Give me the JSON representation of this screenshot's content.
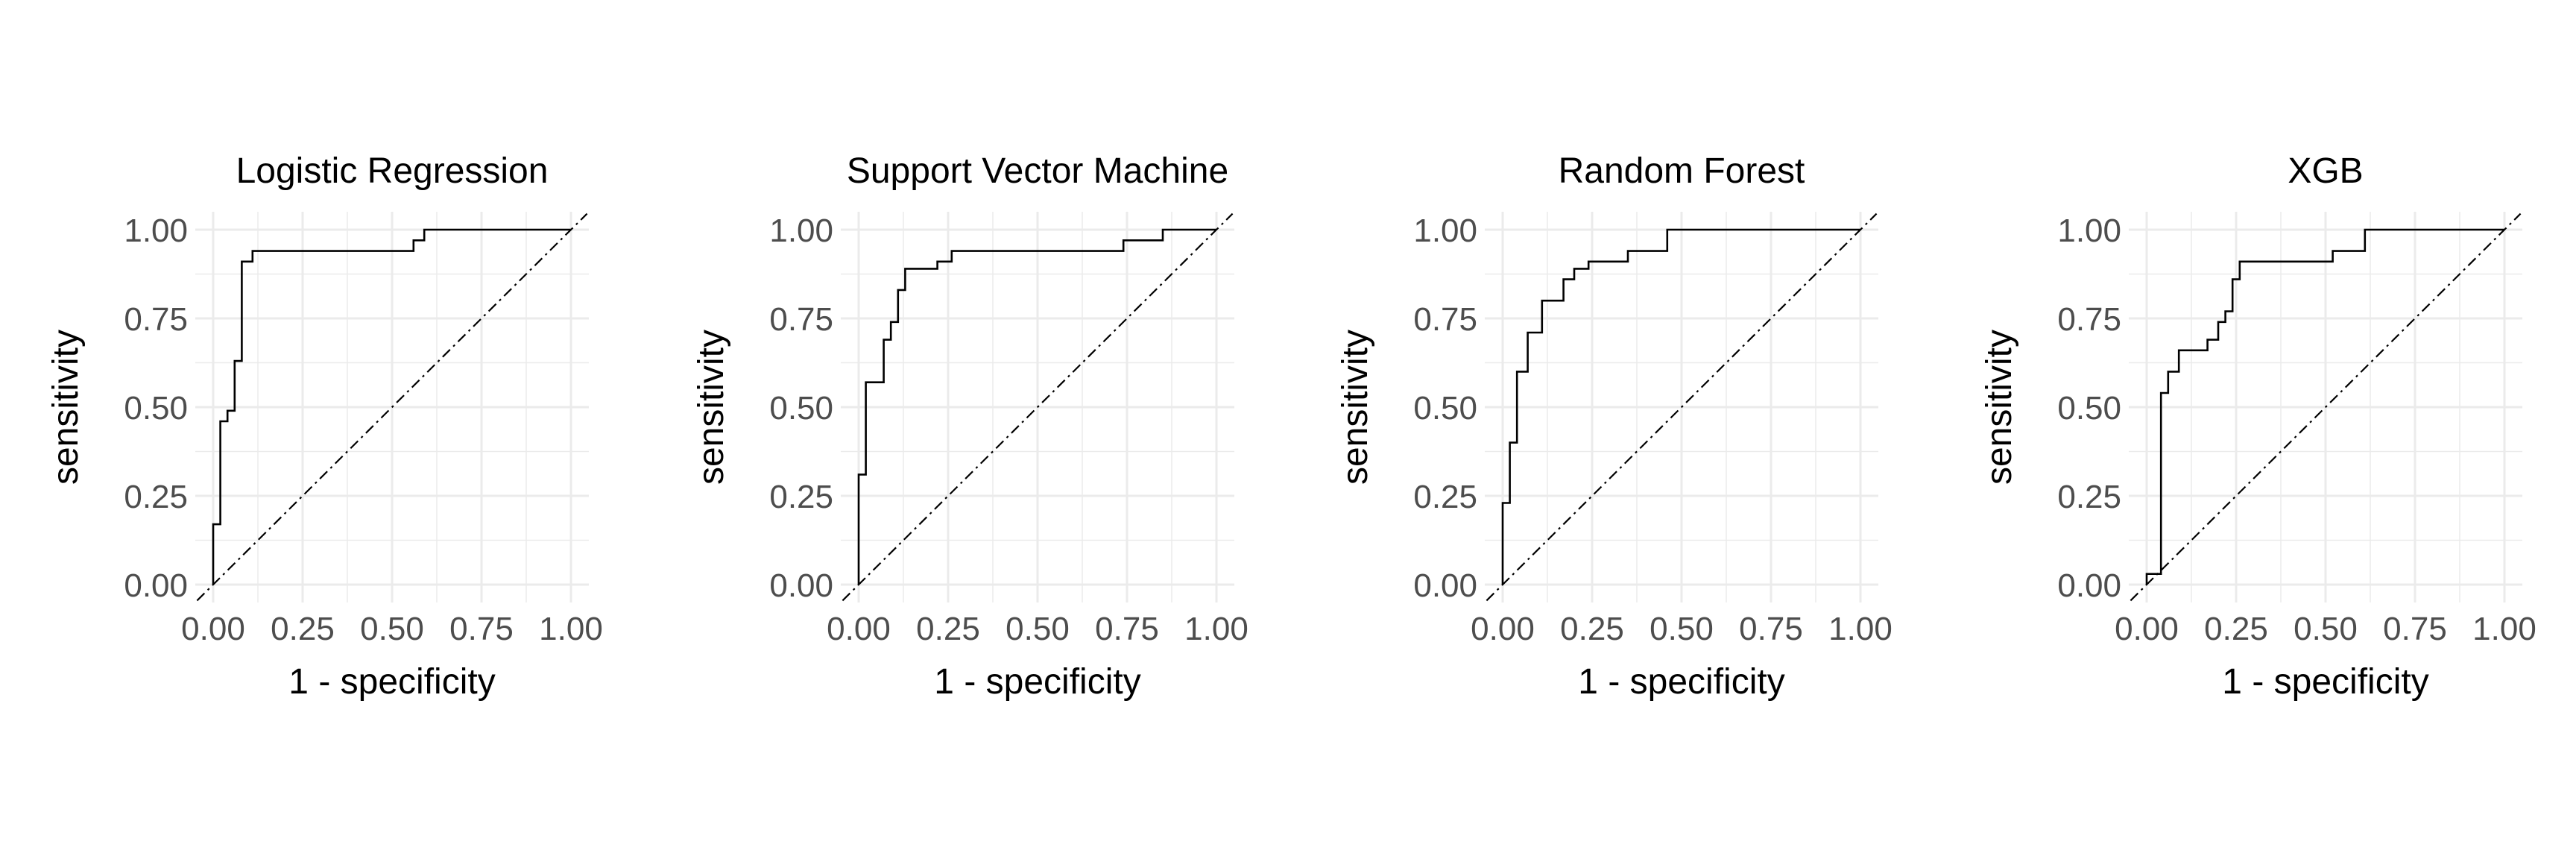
{
  "chart_data": [
    {
      "type": "line",
      "title": "Logistic Regression",
      "xlabel": "1 - specificity",
      "ylabel": "sensitivity",
      "xlim": [
        0,
        1
      ],
      "ylim": [
        0,
        1
      ],
      "x_ticks": [
        "0.00",
        "0.25",
        "0.50",
        "0.75",
        "1.00"
      ],
      "y_ticks": [
        "0.00",
        "0.25",
        "0.50",
        "0.75",
        "1.00"
      ],
      "grid": true,
      "reference_line": "diagonal",
      "x": [
        0,
        0,
        0.02,
        0.02,
        0.04,
        0.04,
        0.06,
        0.06,
        0.08,
        0.08,
        0.11,
        0.11,
        0.15,
        0.15,
        0.56,
        0.56,
        0.59,
        0.59,
        1.0
      ],
      "y": [
        0,
        0.17,
        0.17,
        0.46,
        0.46,
        0.49,
        0.49,
        0.63,
        0.63,
        0.91,
        0.91,
        0.94,
        0.94,
        0.94,
        0.94,
        0.97,
        0.97,
        1.0,
        1.0
      ]
    },
    {
      "type": "line",
      "title": "Support Vector Machine",
      "xlabel": "1 - specificity",
      "ylabel": "sensitivity",
      "xlim": [
        0,
        1
      ],
      "ylim": [
        0,
        1
      ],
      "x_ticks": [
        "0.00",
        "0.25",
        "0.50",
        "0.75",
        "1.00"
      ],
      "y_ticks": [
        "0.00",
        "0.25",
        "0.50",
        "0.75",
        "1.00"
      ],
      "grid": true,
      "reference_line": "diagonal",
      "x": [
        0,
        0,
        0.02,
        0.02,
        0.07,
        0.07,
        0.09,
        0.09,
        0.11,
        0.11,
        0.13,
        0.13,
        0.15,
        0.15,
        0.22,
        0.22,
        0.26,
        0.26,
        0.74,
        0.74,
        0.85,
        0.85,
        1.0
      ],
      "y": [
        0,
        0.31,
        0.31,
        0.57,
        0.57,
        0.69,
        0.69,
        0.74,
        0.74,
        0.83,
        0.83,
        0.89,
        0.89,
        0.89,
        0.89,
        0.91,
        0.91,
        0.94,
        0.94,
        0.97,
        0.97,
        1.0,
        1.0
      ]
    },
    {
      "type": "line",
      "title": "Random Forest",
      "xlabel": "1 - specificity",
      "ylabel": "sensitivity",
      "xlim": [
        0,
        1
      ],
      "ylim": [
        0,
        1
      ],
      "x_ticks": [
        "0.00",
        "0.25",
        "0.50",
        "0.75",
        "1.00"
      ],
      "y_ticks": [
        "0.00",
        "0.25",
        "0.50",
        "0.75",
        "1.00"
      ],
      "grid": true,
      "reference_line": "diagonal",
      "x": [
        0,
        0,
        0.02,
        0.02,
        0.04,
        0.04,
        0.07,
        0.07,
        0.11,
        0.11,
        0.17,
        0.17,
        0.2,
        0.2,
        0.24,
        0.24,
        0.35,
        0.35,
        0.46,
        0.46,
        1.0
      ],
      "y": [
        0,
        0.23,
        0.23,
        0.4,
        0.4,
        0.6,
        0.6,
        0.71,
        0.71,
        0.8,
        0.8,
        0.86,
        0.86,
        0.89,
        0.89,
        0.91,
        0.91,
        0.94,
        0.94,
        1.0,
        1.0
      ]
    },
    {
      "type": "line",
      "title": "XGB",
      "xlabel": "1 - specificity",
      "ylabel": "sensitivity",
      "xlim": [
        0,
        1
      ],
      "ylim": [
        0,
        1
      ],
      "x_ticks": [
        "0.00",
        "0.25",
        "0.50",
        "0.75",
        "1.00"
      ],
      "y_ticks": [
        "0.00",
        "0.25",
        "0.50",
        "0.75",
        "1.00"
      ],
      "grid": true,
      "reference_line": "diagonal",
      "x": [
        0,
        0,
        0.04,
        0.04,
        0.06,
        0.06,
        0.09,
        0.09,
        0.17,
        0.17,
        0.2,
        0.2,
        0.22,
        0.22,
        0.24,
        0.24,
        0.26,
        0.26,
        0.52,
        0.52,
        0.61,
        0.61,
        1.0
      ],
      "y": [
        0,
        0.03,
        0.03,
        0.54,
        0.54,
        0.6,
        0.6,
        0.66,
        0.66,
        0.69,
        0.69,
        0.74,
        0.74,
        0.77,
        0.77,
        0.86,
        0.86,
        0.91,
        0.91,
        0.94,
        0.94,
        1.0,
        1.0
      ]
    }
  ]
}
